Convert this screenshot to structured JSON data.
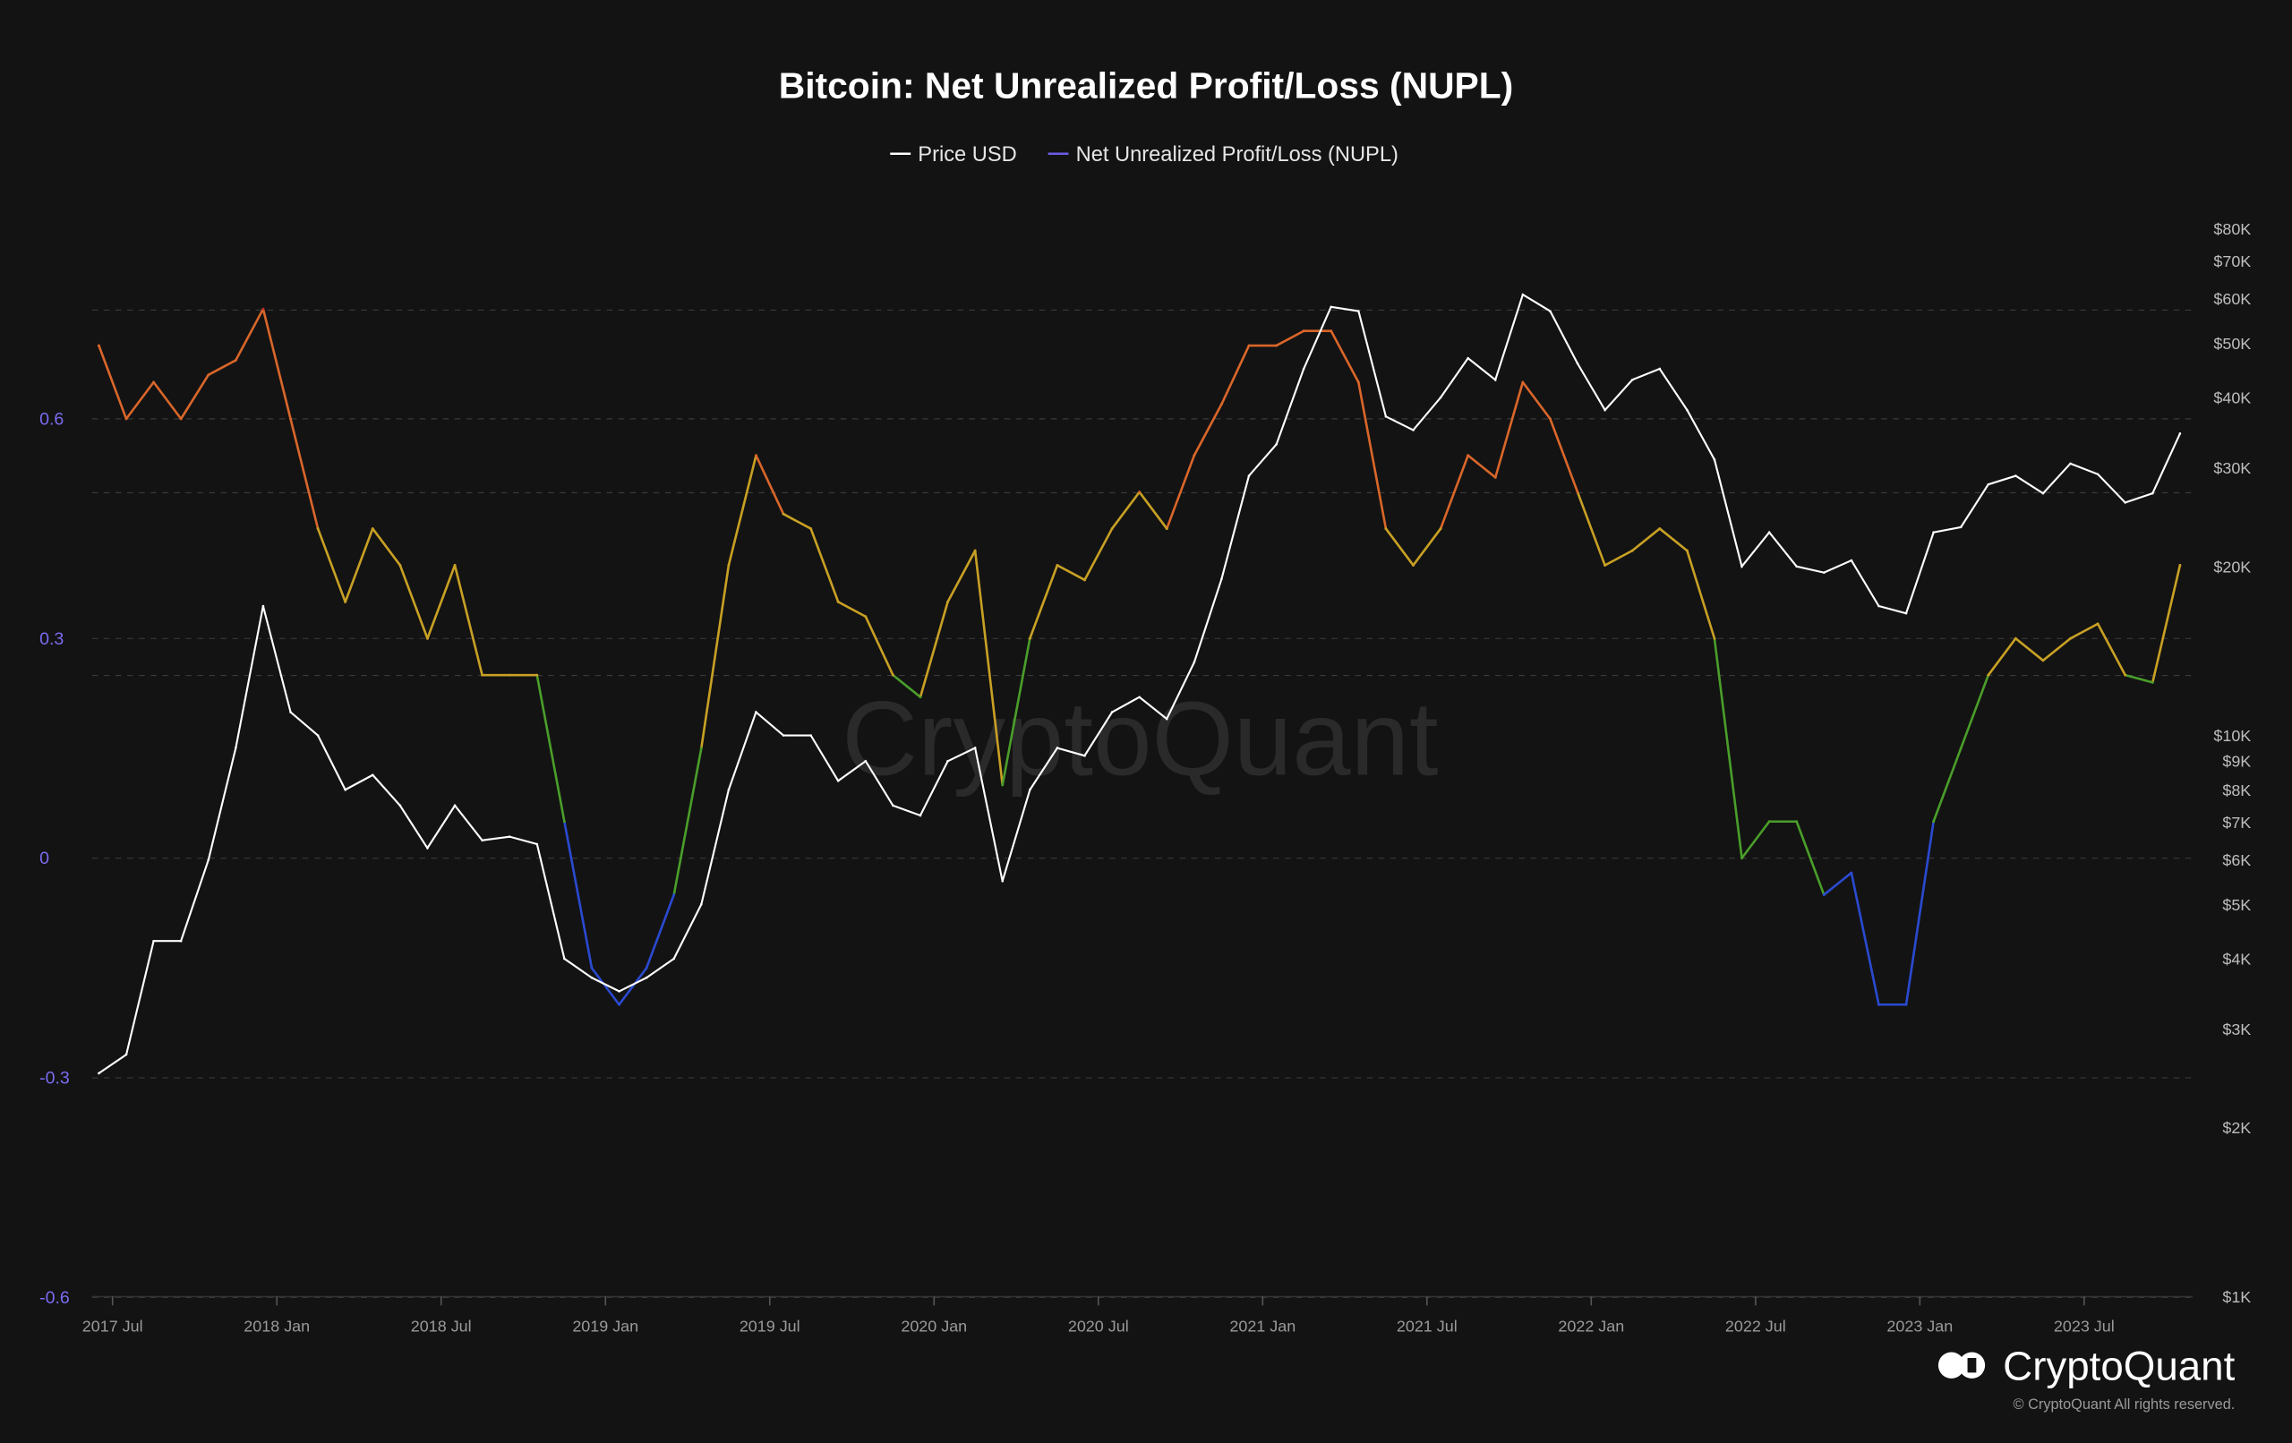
{
  "chart_data": {
    "type": "line",
    "title": "Bitcoin: Net Unrealized Profit/Loss (NUPL)",
    "legend": {
      "placement": "top-center",
      "entries": [
        "Price USD",
        "Net Unrealized Profit/Loss (NUPL)"
      ]
    },
    "x_ticks": [
      "2017 Jul",
      "2018 Jan",
      "2018 Jul",
      "2019 Jan",
      "2019 Jul",
      "2020 Jan",
      "2020 Jul",
      "2021 Jan",
      "2021 Jul",
      "2022 Jan",
      "2022 Jul",
      "2023 Jan",
      "2023 Jul"
    ],
    "y_left": {
      "ticks": [
        "0.6",
        "0.3",
        "0",
        "-0.3",
        "-0.6"
      ],
      "range": [
        -0.6,
        0.9
      ]
    },
    "y_right": {
      "scale": "log",
      "ticks": [
        "$80K",
        "$70K",
        "$60K",
        "$50K",
        "$40K",
        "$30K",
        "$20K",
        "$10K",
        "$9K",
        "$8K",
        "$7K",
        "$6K",
        "$5K",
        "$4K",
        "$3K",
        "$2K",
        "$1K"
      ],
      "range": [
        1000,
        85000
      ]
    },
    "grid": true,
    "x": [
      "2017-06",
      "2017-07",
      "2017-08",
      "2017-09",
      "2017-10",
      "2017-11",
      "2017-12",
      "2018-01",
      "2018-02",
      "2018-03",
      "2018-04",
      "2018-05",
      "2018-06",
      "2018-07",
      "2018-08",
      "2018-09",
      "2018-10",
      "2018-11",
      "2018-12",
      "2019-01",
      "2019-02",
      "2019-03",
      "2019-04",
      "2019-05",
      "2019-06",
      "2019-07",
      "2019-08",
      "2019-09",
      "2019-10",
      "2019-11",
      "2019-12",
      "2020-01",
      "2020-02",
      "2020-03",
      "2020-04",
      "2020-05",
      "2020-06",
      "2020-07",
      "2020-08",
      "2020-09",
      "2020-10",
      "2020-11",
      "2020-12",
      "2021-01",
      "2021-02",
      "2021-03",
      "2021-04",
      "2021-05",
      "2021-06",
      "2021-07",
      "2021-08",
      "2021-09",
      "2021-10",
      "2021-11",
      "2021-12",
      "2022-01",
      "2022-02",
      "2022-03",
      "2022-04",
      "2022-05",
      "2022-06",
      "2022-07",
      "2022-08",
      "2022-09",
      "2022-10",
      "2022-11",
      "2022-12",
      "2023-01",
      "2023-02",
      "2023-03",
      "2023-04",
      "2023-05",
      "2023-06",
      "2023-07",
      "2023-08",
      "2023-09",
      "2023-10"
    ],
    "series": [
      {
        "name": "Price USD",
        "axis": "right",
        "color": "#ffffff",
        "values": [
          2500,
          2700,
          4300,
          4300,
          6000,
          9500,
          17000,
          11000,
          10000,
          8000,
          8500,
          7500,
          6300,
          7500,
          6500,
          6600,
          6400,
          4000,
          3700,
          3500,
          3700,
          4000,
          5000,
          8000,
          11000,
          10000,
          10000,
          8300,
          9000,
          7500,
          7200,
          9000,
          9500,
          5500,
          8000,
          9500,
          9200,
          11000,
          11700,
          10700,
          13500,
          19000,
          29000,
          33000,
          45000,
          58000,
          57000,
          37000,
          35000,
          40000,
          47000,
          43000,
          61000,
          57000,
          46000,
          38000,
          43000,
          45000,
          38000,
          31000,
          20000,
          23000,
          20000,
          19500,
          20500,
          17000,
          16500,
          23000,
          23500,
          28000,
          29000,
          27000,
          30500,
          29200,
          26000,
          27000,
          34500
        ]
      },
      {
        "name": "Net Unrealized Profit/Loss (NUPL)",
        "axis": "left",
        "color": "#6c5ce7",
        "values": [
          0.7,
          0.6,
          0.65,
          0.6,
          0.66,
          0.68,
          0.75,
          0.6,
          0.45,
          0.35,
          0.45,
          0.4,
          0.3,
          0.4,
          0.25,
          0.25,
          0.25,
          0.05,
          -0.15,
          -0.2,
          -0.15,
          -0.05,
          0.15,
          0.4,
          0.55,
          0.47,
          0.45,
          0.35,
          0.33,
          0.25,
          0.22,
          0.35,
          0.42,
          0.1,
          0.3,
          0.4,
          0.38,
          0.45,
          0.5,
          0.45,
          0.55,
          0.62,
          0.7,
          0.7,
          0.72,
          0.72,
          0.65,
          0.45,
          0.4,
          0.45,
          0.55,
          0.52,
          0.65,
          0.6,
          0.5,
          0.4,
          0.42,
          0.45,
          0.42,
          0.3,
          0.0,
          0.05,
          0.05,
          -0.05,
          -0.02,
          -0.2,
          -0.2,
          0.05,
          0.15,
          0.25,
          0.3,
          0.27,
          0.3,
          0.32,
          0.25,
          0.24,
          0.4
        ]
      }
    ],
    "zone_colors": {
      "euphoria": "#c0262b",
      "belief": "#d9662a",
      "optimism": "#c8a024",
      "hope": "#4a9e2a",
      "capitulation": "#2a4ad0"
    }
  },
  "watermark": "CryptoQuant",
  "brand": {
    "name": "CryptoQuant",
    "copyright": "© CryptoQuant All rights reserved."
  }
}
